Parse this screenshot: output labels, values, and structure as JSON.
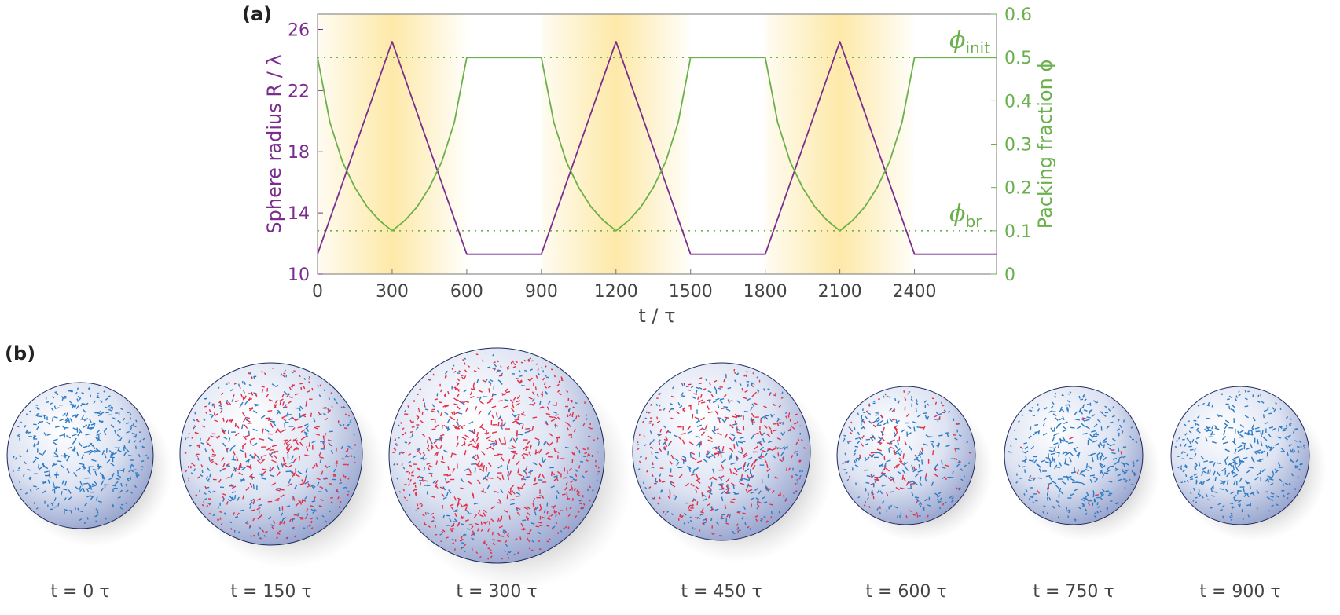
{
  "panel_a_label": "(a)",
  "panel_b_label": "(b)",
  "colors": {
    "radius": "#7b2d8e",
    "packing": "#6ab04c",
    "shade": "#fde9a8",
    "mesogen_blue": "#2f7cc4",
    "mesogen_red": "#e0314b"
  },
  "chart_data": {
    "type": "line",
    "xlabel": "t / τ",
    "ylabel_left": "Sphere radius R / λ",
    "ylabel_right": "Packing fraction ϕ",
    "xlim": [
      0,
      2730
    ],
    "ylim_left": [
      10,
      27
    ],
    "ylim_right": [
      0,
      0.6
    ],
    "x_ticks": [
      0,
      300,
      600,
      900,
      1200,
      1500,
      1800,
      2100,
      2400
    ],
    "y_left_ticks": [
      10,
      14,
      18,
      22,
      26
    ],
    "y_right_ticks": [
      0,
      0.1,
      0.2,
      0.3,
      0.4,
      0.5,
      0.6
    ],
    "y_right_tick_labels": [
      "0",
      "0.1",
      "0.2",
      "0.3",
      "0.4",
      "0.5",
      "0.6"
    ],
    "shaded_intervals": [
      [
        0,
        600
      ],
      [
        900,
        1500
      ],
      [
        1800,
        2400
      ]
    ],
    "series": [
      {
        "name": "Sphere radius R / λ",
        "axis": "left",
        "x": [
          0,
          300,
          600,
          900,
          1200,
          1500,
          1800,
          2100,
          2400,
          2730
        ],
        "y": [
          11.3,
          25.2,
          11.3,
          11.3,
          25.2,
          11.3,
          11.3,
          25.2,
          11.3,
          11.3
        ]
      },
      {
        "name": "Packing fraction ϕ",
        "axis": "right",
        "x": [
          0,
          50,
          100,
          150,
          200,
          250,
          300,
          350,
          400,
          450,
          500,
          550,
          600,
          900,
          950,
          1000,
          1050,
          1100,
          1150,
          1200,
          1250,
          1300,
          1350,
          1400,
          1450,
          1500,
          1800,
          1850,
          1900,
          1950,
          2000,
          2050,
          2100,
          2150,
          2200,
          2250,
          2300,
          2350,
          2400,
          2730
        ],
        "y": [
          0.5,
          0.35,
          0.26,
          0.2,
          0.155,
          0.123,
          0.1,
          0.123,
          0.155,
          0.2,
          0.26,
          0.35,
          0.5,
          0.5,
          0.35,
          0.26,
          0.2,
          0.155,
          0.123,
          0.1,
          0.123,
          0.155,
          0.2,
          0.26,
          0.35,
          0.5,
          0.5,
          0.35,
          0.26,
          0.2,
          0.155,
          0.123,
          0.1,
          0.123,
          0.155,
          0.2,
          0.26,
          0.35,
          0.5,
          0.5
        ]
      }
    ],
    "reference_lines": [
      {
        "axis": "right",
        "y": 0.5,
        "label": "ϕ",
        "subscript": "init"
      },
      {
        "axis": "right",
        "y": 0.1,
        "label": "ϕ",
        "subscript": "br"
      }
    ]
  },
  "snapshots": [
    {
      "caption": "t = 0 τ",
      "red_fraction": 0.0
    },
    {
      "caption": "t = 150 τ",
      "red_fraction": 0.6
    },
    {
      "caption": "t = 300 τ",
      "red_fraction": 0.75
    },
    {
      "caption": "t = 450 τ",
      "red_fraction": 0.55
    },
    {
      "caption": "t = 600 τ",
      "red_fraction": 0.3
    },
    {
      "caption": "t = 750 τ",
      "red_fraction": 0.04
    },
    {
      "caption": "t = 900 τ",
      "red_fraction": 0.0
    }
  ]
}
